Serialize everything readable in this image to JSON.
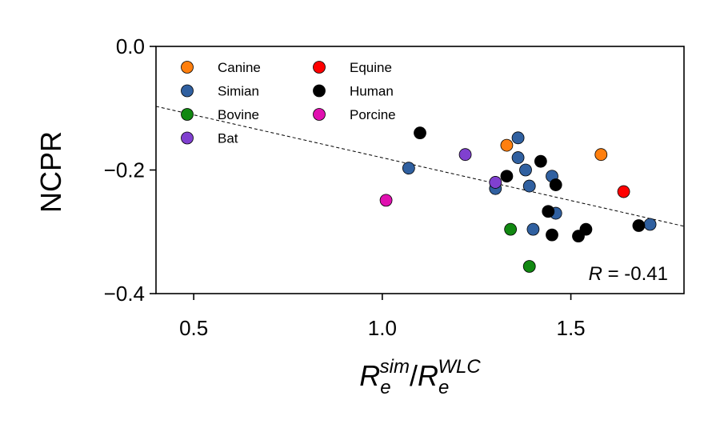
{
  "chart_data": {
    "type": "scatter",
    "xlabel": {
      "base": "R",
      "sub": "e",
      "sup": "sim",
      "sep": "/",
      "base2": "R",
      "sub2": "e",
      "sup2": "WLC"
    },
    "ylabel": "NCPR",
    "xlim": [
      0.4,
      1.8
    ],
    "ylim": [
      -0.4,
      0.0
    ],
    "xticks": [
      0.5,
      1.0,
      1.5
    ],
    "yticks": [
      0.0,
      -0.2,
      -0.4
    ],
    "xtick_labels": [
      "0.5",
      "1.0",
      "1.5"
    ],
    "ytick_labels": [
      "0.0",
      "−0.2",
      "−0.4"
    ],
    "legend_position": "upper-left",
    "series": [
      {
        "name": "Canine",
        "color": "#ff7f0e",
        "points": [
          [
            1.33,
            -0.16
          ],
          [
            1.58,
            -0.175
          ]
        ]
      },
      {
        "name": "Simian",
        "color": "#3060a0",
        "points": [
          [
            1.07,
            -0.197
          ],
          [
            1.3,
            -0.23
          ],
          [
            1.36,
            -0.148
          ],
          [
            1.36,
            -0.18
          ],
          [
            1.38,
            -0.2
          ],
          [
            1.39,
            -0.226
          ],
          [
            1.4,
            -0.296
          ],
          [
            1.45,
            -0.21
          ],
          [
            1.46,
            -0.27
          ],
          [
            1.71,
            -0.288
          ]
        ]
      },
      {
        "name": "Bovine",
        "color": "#118811",
        "points": [
          [
            1.34,
            -0.296
          ],
          [
            1.39,
            -0.356
          ]
        ]
      },
      {
        "name": "Bat",
        "color": "#8040d0",
        "points": [
          [
            1.22,
            -0.175
          ],
          [
            1.3,
            -0.22
          ]
        ]
      },
      {
        "name": "Equine",
        "color": "#ff0000",
        "points": [
          [
            1.64,
            -0.235
          ]
        ]
      },
      {
        "name": "Human",
        "color": "#000000",
        "points": [
          [
            1.1,
            -0.14
          ],
          [
            1.33,
            -0.21
          ],
          [
            1.42,
            -0.186
          ],
          [
            1.44,
            -0.267
          ],
          [
            1.45,
            -0.305
          ],
          [
            1.46,
            -0.224
          ],
          [
            1.52,
            -0.307
          ],
          [
            1.54,
            -0.296
          ],
          [
            1.68,
            -0.29
          ]
        ]
      },
      {
        "name": "Porcine",
        "color": "#e010b0",
        "points": [
          [
            1.01,
            -0.249
          ]
        ]
      }
    ],
    "fit_line": {
      "x": [
        0.4,
        1.8
      ],
      "y": [
        -0.097,
        -0.291
      ],
      "style": "dashed",
      "color": "#000000"
    },
    "annotation": {
      "label": "R",
      "value": " = -0.41"
    }
  }
}
